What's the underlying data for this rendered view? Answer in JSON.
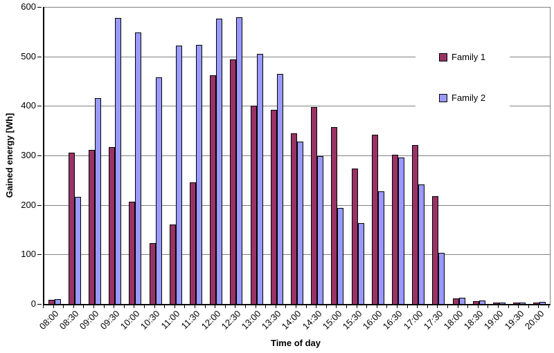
{
  "chart_data": {
    "type": "bar",
    "title": "",
    "xlabel": "Time of day",
    "ylabel": "Gained energy [Wh]",
    "ylim": [
      0,
      600
    ],
    "yticks": [
      0,
      100,
      200,
      300,
      400,
      500,
      600
    ],
    "grid": true,
    "legend_position": "inside-top-right",
    "categories": [
      "08:00",
      "08:30",
      "09:00",
      "09:30",
      "10:00",
      "10:30",
      "11:00",
      "11:30",
      "12:00",
      "12:30",
      "13:00",
      "13:30",
      "14:00",
      "14:30",
      "15:00",
      "15:30",
      "16:00",
      "16:30",
      "17:00",
      "17:30",
      "18:00",
      "18:30",
      "19:00",
      "19:30",
      "20:00"
    ],
    "series": [
      {
        "name": "Family 1",
        "color": "#993366",
        "values": [
          8,
          305,
          311,
          317,
          206,
          123,
          161,
          245,
          462,
          494,
          401,
          392,
          344,
          397,
          357,
          274,
          342,
          301,
          321,
          218,
          11,
          5,
          2,
          2,
          2
        ]
      },
      {
        "name": "Family 2",
        "color": "#9999FF",
        "values": [
          10,
          216,
          416,
          578,
          548,
          458,
          522,
          523,
          576,
          579,
          505,
          464,
          328,
          298,
          194,
          163,
          228,
          296,
          241,
          103,
          13,
          7,
          3,
          3,
          4
        ]
      }
    ]
  },
  "colors": {
    "background": "#FFFFFF",
    "gridline": "#808080",
    "axis": "#000000",
    "bar_border": "#000000",
    "text": "#000000",
    "family1": "#993366",
    "family2": "#9999FF"
  }
}
